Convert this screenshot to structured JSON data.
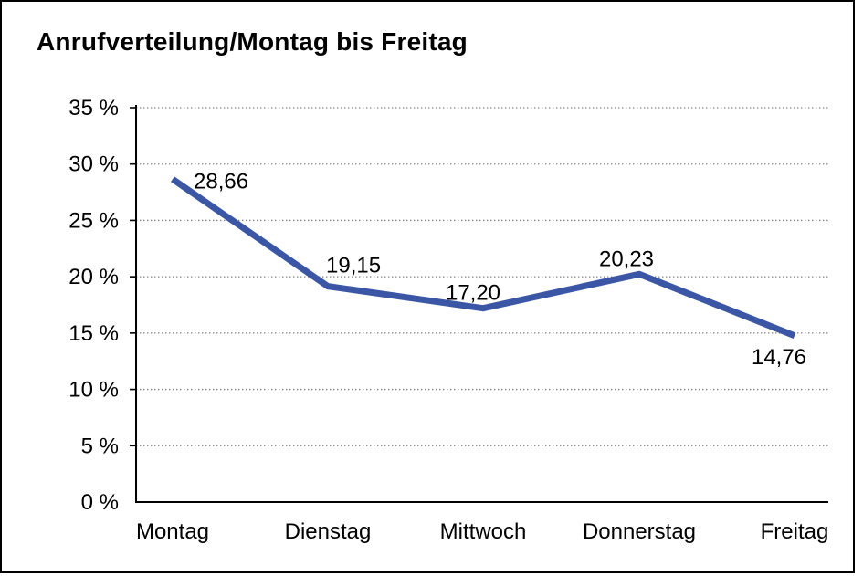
{
  "title": "Anrufverteilung/Montag bis Freitag",
  "chart_data": {
    "type": "line",
    "title": "Anrufverteilung/Montag bis Freitag",
    "categories": [
      "Montag",
      "Dienstag",
      "Mittwoch",
      "Donnerstag",
      "Freitag"
    ],
    "values": [
      28.66,
      19.15,
      17.2,
      20.23,
      14.76
    ],
    "point_labels": [
      "28,66",
      "19,15",
      "17,20",
      "20,23",
      "14,76"
    ],
    "y_tick_labels": [
      "0 %",
      "5 %",
      "10 %",
      "15 %",
      "20 %",
      "25 %",
      "30 %",
      "35 %"
    ],
    "y_ticks": [
      0,
      5,
      10,
      15,
      20,
      25,
      30,
      35
    ],
    "ylim": [
      0,
      35
    ],
    "xlabel": "",
    "ylabel": "",
    "legend": "none",
    "grid": "horizontal-dotted",
    "line_color": "#3A56A5",
    "grid_color": "#7f7f7f",
    "axis_color": "#000000",
    "text_color": "#000000"
  }
}
